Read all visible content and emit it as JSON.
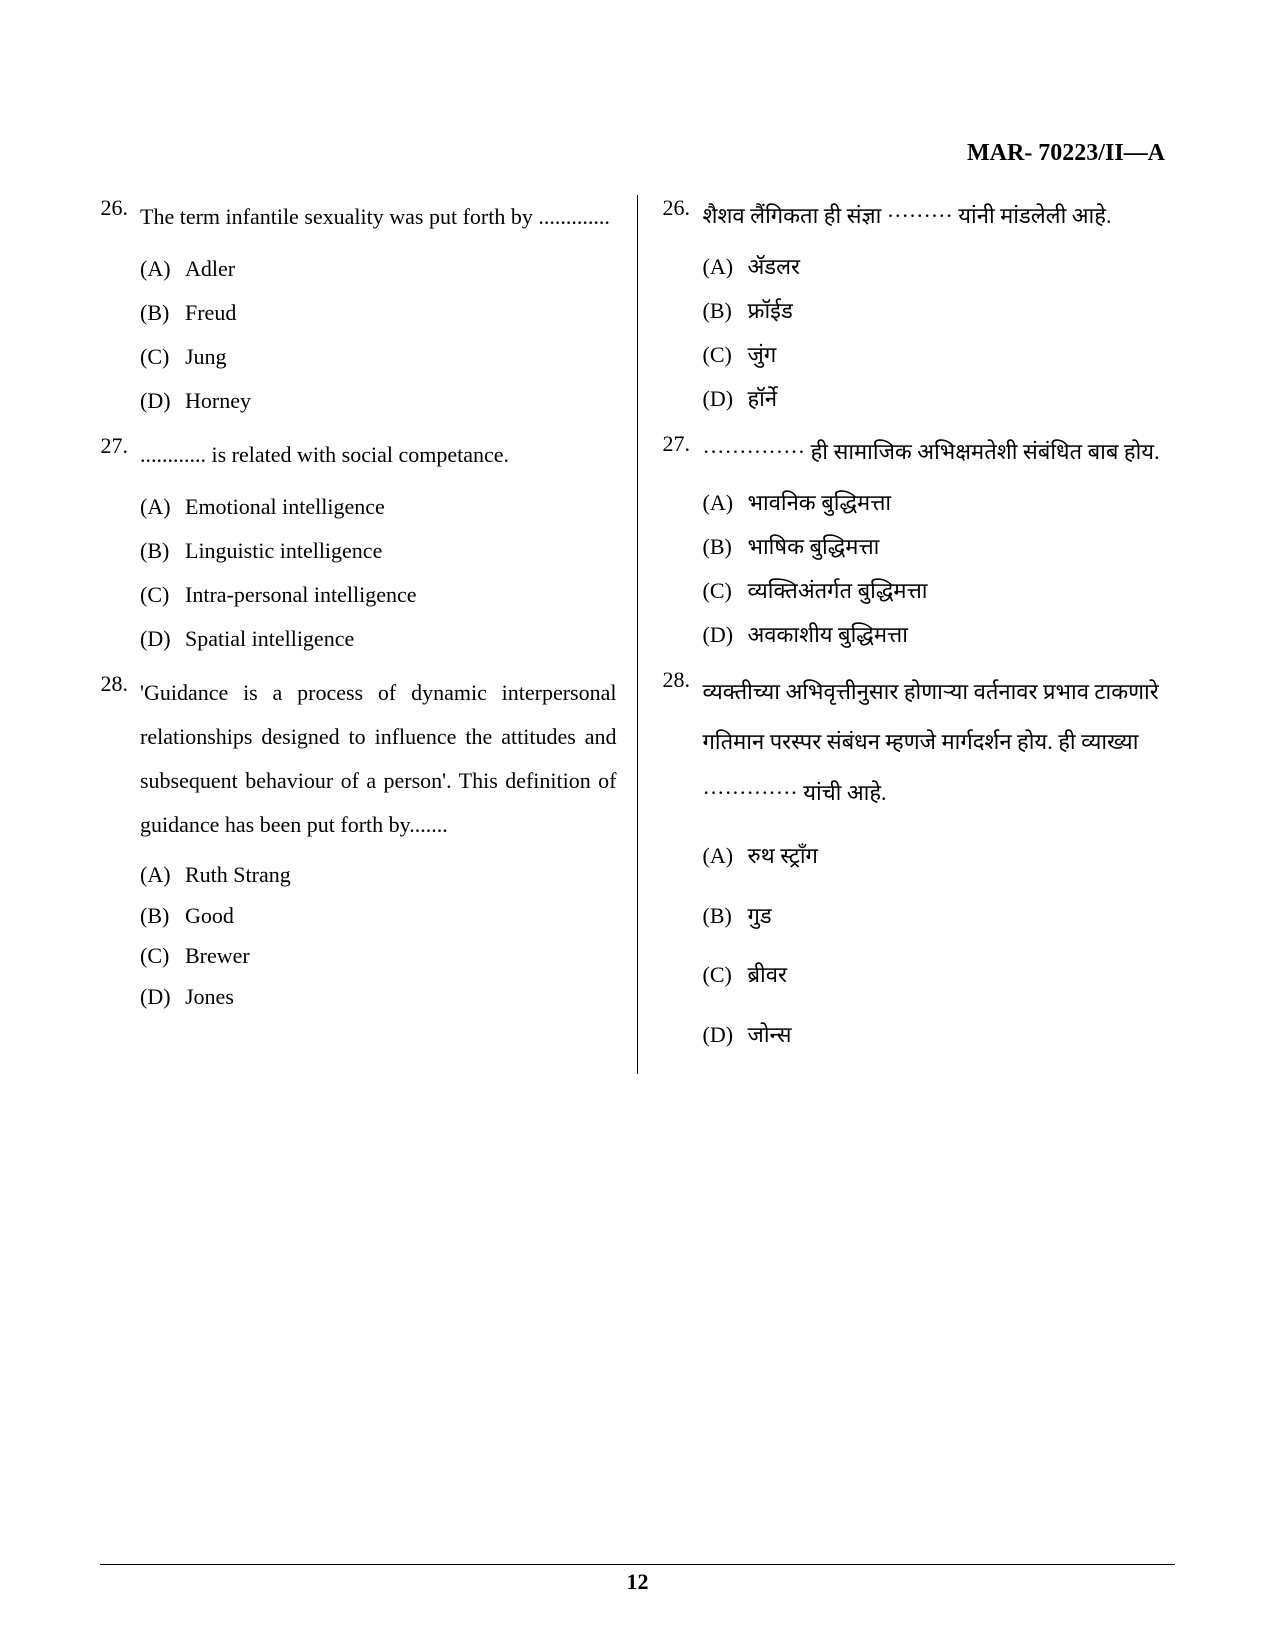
{
  "header": "MAR- 70223/II—A",
  "page_number": "12",
  "left": {
    "questions": [
      {
        "num": "26.",
        "text": "The term infantile sexuality was put forth by .............",
        "options": [
          {
            "label": "(A)",
            "text": "Adler"
          },
          {
            "label": "(B)",
            "text": "Freud"
          },
          {
            "label": "(C)",
            "text": "Jung"
          },
          {
            "label": "(D)",
            "text": "Horney"
          }
        ]
      },
      {
        "num": "27.",
        "text": "............ is related with social competance.",
        "options": [
          {
            "label": "(A)",
            "text": "Emotional intelligence"
          },
          {
            "label": "(B)",
            "text": "Linguistic intelligence"
          },
          {
            "label": "(C)",
            "text": "Intra-personal intelligence"
          },
          {
            "label": "(D)",
            "text": "Spatial intelligence"
          }
        ]
      },
      {
        "num": "28.",
        "text": "'Guidance is a process of dynamic interpersonal relationships designed to influence the attitudes and subsequent behaviour of a person'. This definition of guidance has been put forth by.......",
        "options": [
          {
            "label": "(A)",
            "text": "Ruth Strang"
          },
          {
            "label": "(B)",
            "text": "Good"
          },
          {
            "label": "(C)",
            "text": "Brewer"
          },
          {
            "label": "(D)",
            "text": "Jones"
          }
        ]
      }
    ]
  },
  "right": {
    "questions": [
      {
        "num": "26.",
        "text": "शैशव लैंगिकता ही संज्ञा ········· यांनी मांडलेली आहे.",
        "options": [
          {
            "label": "(A)",
            "text": "ॲडलर"
          },
          {
            "label": "(B)",
            "text": "फ्रॉईड"
          },
          {
            "label": "(C)",
            "text": "जुंग"
          },
          {
            "label": "(D)",
            "text": "हॉर्ने"
          }
        ]
      },
      {
        "num": "27.",
        "text": "·············· ही सामाजिक अभिक्षमतेशी संबंधित बाब होय.",
        "options": [
          {
            "label": "(A)",
            "text": "भावनिक बुद्धिमत्ता"
          },
          {
            "label": "(B)",
            "text": "भाषिक बुद्धिमत्ता"
          },
          {
            "label": "(C)",
            "text": "व्यक्तिअंतर्गत बुद्धिमत्ता"
          },
          {
            "label": "(D)",
            "text": "अवकाशीय बुद्धिमत्ता"
          }
        ]
      },
      {
        "num": "28.",
        "text": "व्यक्तीच्या अभिवृत्तीनुसार होणाऱ्या वर्तनावर प्रभाव टाकणारे गतिमान परस्पर संबंधन म्हणजे मार्गदर्शन होय. ही व्याख्या ············· यांची आहे.",
        "options": [
          {
            "label": "(A)",
            "text": "रुथ स्ट्राँग"
          },
          {
            "label": "(B)",
            "text": "गुड"
          },
          {
            "label": "(C)",
            "text": "ब्रीवर"
          },
          {
            "label": "(D)",
            "text": "जोन्स"
          }
        ]
      }
    ]
  }
}
